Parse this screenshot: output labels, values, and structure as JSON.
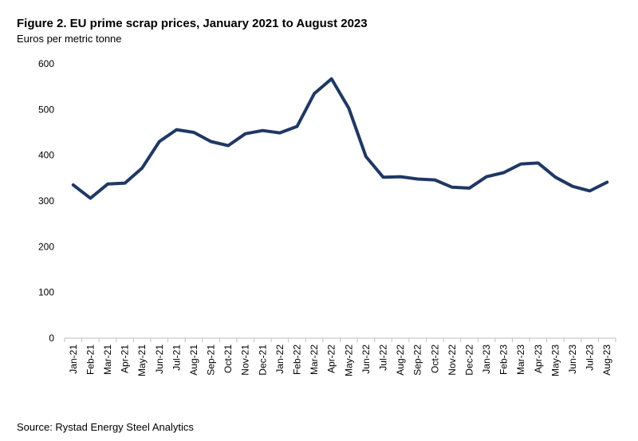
{
  "title": "Figure 2. EU prime scrap prices, January 2021 to August 2023",
  "subtitle": "Euros per metric tonne",
  "source": "Source: Rystad Energy Steel Analytics",
  "chart_data": {
    "type": "line",
    "title": "Figure 2. EU prime scrap prices, January 2021 to August 2023",
    "ylabel": "Euros per metric tonne",
    "xlabel": "",
    "ylim": [
      0,
      600
    ],
    "yticks": [
      0,
      100,
      200,
      300,
      400,
      500,
      600
    ],
    "grid": false,
    "line_color": "#1F3864",
    "categories": [
      "Jan-21",
      "Feb-21",
      "Mar-21",
      "Apr-21",
      "May-21",
      "Jun-21",
      "Jul-21",
      "Aug-21",
      "Sep-21",
      "Oct-21",
      "Nov-21",
      "Dec-21",
      "Jan-22",
      "Feb-22",
      "Mar-22",
      "Apr-22",
      "May-22",
      "Jun-22",
      "Jul-22",
      "Aug-22",
      "Sep-22",
      "Oct-22",
      "Nov-22",
      "Dec-22",
      "Jan-23",
      "Feb-23",
      "Mar-23",
      "Apr-23",
      "May-23",
      "Jun-23",
      "Jul-23",
      "Aug-23"
    ],
    "series": [
      {
        "values": [
          335,
          306,
          337,
          339,
          372,
          430,
          456,
          450,
          430,
          421,
          447,
          454,
          449,
          463,
          535,
          567,
          503,
          397,
          352,
          353,
          348,
          346,
          330,
          328,
          353,
          362,
          381,
          383,
          352,
          332,
          322,
          341
        ]
      }
    ]
  }
}
